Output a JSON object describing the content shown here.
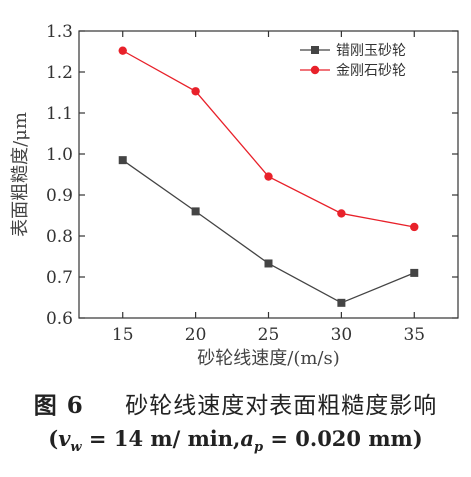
{
  "chart_data": {
    "type": "line",
    "xlabel": "砂轮线速度/(m/s)",
    "ylabel": "表面粗糙度/μm",
    "xlim": [
      12,
      38
    ],
    "ylim": [
      0.6,
      1.3
    ],
    "x_ticks": [
      "15",
      "20",
      "25",
      "30",
      "35"
    ],
    "y_ticks": [
      "0.6",
      "0.7",
      "0.8",
      "0.9",
      "1.0",
      "1.1",
      "1.2",
      "1.3"
    ],
    "x": [
      15,
      20,
      25,
      30,
      35
    ],
    "series": [
      {
        "name": "错刚玉砂轮",
        "values": [
          0.985,
          0.86,
          0.733,
          0.637,
          0.71
        ],
        "color": "#444444",
        "marker": "square"
      },
      {
        "name": "金刚石砂轮",
        "values": [
          1.252,
          1.153,
          0.945,
          0.855,
          0.822
        ],
        "color": "#e8212a",
        "marker": "circle"
      }
    ],
    "legend_position": "top-right",
    "grid": false
  },
  "caption": {
    "fig_label": "图 6",
    "title": "砂轮线速度对表面粗糙度影响",
    "params_open": "(",
    "v_sym": "v",
    "v_sub": "w",
    "v_value": " = 14 m/ min,",
    "a_sym": "a",
    "a_sub": "p",
    "a_value": " = 0.020 mm",
    "params_close": ")"
  }
}
